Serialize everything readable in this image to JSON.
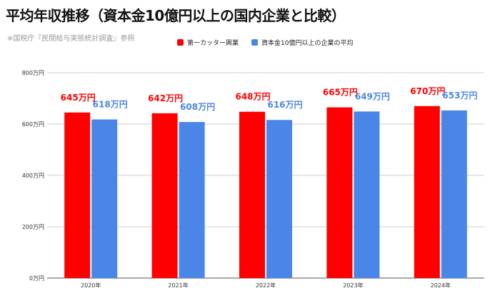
{
  "title": "平均年収推移（資本金10億円以上の国内企業と比較）",
  "source_note": "※国税庁『民間給与実態統計調査』参照",
  "chart_data": {
    "type": "bar",
    "categories": [
      "2020年",
      "2021年",
      "2022年",
      "2023年",
      "2024年"
    ],
    "series": [
      {
        "name": "第一カッター興業",
        "values": [
          645,
          642,
          648,
          665,
          670
        ],
        "labels": [
          "645万円",
          "642万円",
          "648万円",
          "665万円",
          "670万円"
        ],
        "color": "#ff0000"
      },
      {
        "name": "資本金10億円以上の企業の平均",
        "values": [
          618,
          608,
          616,
          649,
          653
        ],
        "labels": [
          "618万円",
          "608万円",
          "616万円",
          "649万円",
          "653万円"
        ],
        "color": "#4a86e8"
      }
    ],
    "ylim": [
      0,
      800
    ],
    "yticks": [
      0,
      200,
      400,
      600,
      800
    ],
    "ytick_labels": [
      "0万円",
      "200万円",
      "400万円",
      "600万円",
      "800万円"
    ],
    "grid": true,
    "legend": "top"
  }
}
